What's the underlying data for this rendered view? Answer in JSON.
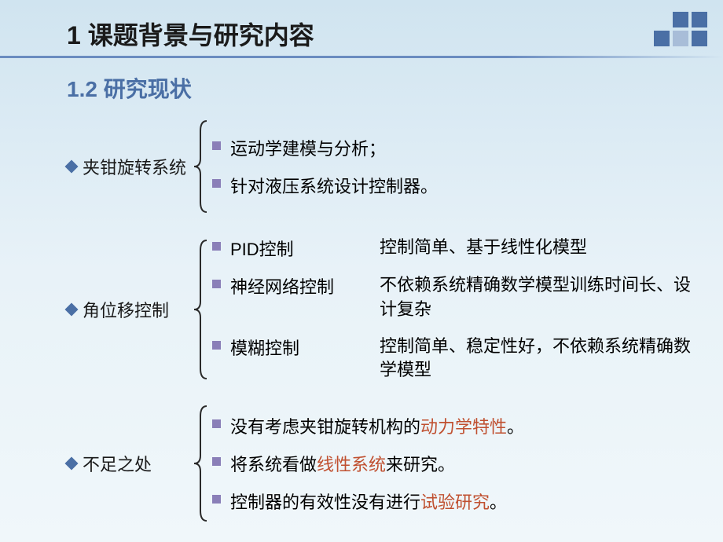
{
  "colors": {
    "accent": "#4a6fa5",
    "subtitle": "#4a6fa5",
    "diamond": "#4a6fa5",
    "square_bullet": "#8a7fb8",
    "highlight": "#c05030",
    "text": "#1a1a1a",
    "brace_stroke": "#2a2a2a",
    "bg_gradient_top": "#d0e4f0",
    "bg_gradient_bottom": "#f0f7fa"
  },
  "typography": {
    "main_title_size": 32,
    "sub_title_size": 28,
    "body_size": 22,
    "font_family": "SimSun"
  },
  "main_title": "1 课题背景与研究内容",
  "sub_title": "1.2 研究现状",
  "sections": [
    {
      "label": "夹钳旋转系统",
      "brace_height": 120,
      "items": [
        {
          "text": "运动学建模与分析；",
          "desc": ""
        },
        {
          "text": "针对液压系统设计控制器。",
          "desc": ""
        }
      ]
    },
    {
      "label": "角位移控制",
      "brace_height": 180,
      "items": [
        {
          "text": "PID控制",
          "desc": "控制简单、基于线性化模型"
        },
        {
          "text": "神经网络控制",
          "desc": "不依赖系统精确数学模型训练时间长、设计复杂"
        },
        {
          "text": "模糊控制",
          "desc": "控制简单、稳定性好，不依赖系统精确数学模型"
        }
      ]
    },
    {
      "label": "不足之处",
      "brace_height": 150,
      "items": [
        {
          "text_parts": [
            {
              "t": "没有考虑夹钳旋转机构的"
            },
            {
              "t": "动力学特性",
              "hl": true
            },
            {
              "t": "。"
            }
          ]
        },
        {
          "text_parts": [
            {
              "t": "将系统看做"
            },
            {
              "t": "线性系统",
              "hl": true
            },
            {
              "t": "来研究。"
            }
          ]
        },
        {
          "text_parts": [
            {
              "t": "控制器的有效性没有进行"
            },
            {
              "t": "试验研究",
              "hl": true
            },
            {
              "t": "。"
            }
          ]
        }
      ]
    }
  ]
}
